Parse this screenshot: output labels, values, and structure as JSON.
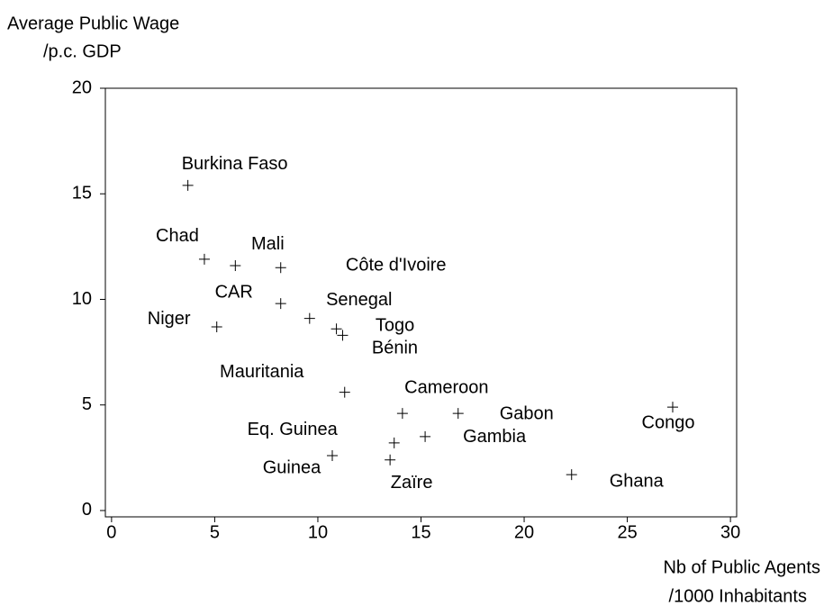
{
  "chart_data": {
    "type": "scatter",
    "y_label": [
      "Average Public Wage",
      "/p.c. GDP"
    ],
    "x_label": [
      "Nb of Public Agents",
      "/1000 Inhabitants"
    ],
    "labels": [
      "Burkina Faso",
      "Chad",
      "Mali",
      "Côte d'Ivoire",
      "CAR",
      "Niger",
      "Senegal",
      "Togo",
      "Bénin",
      "Mauritania",
      "Cameroon",
      "Gabon",
      "Gambia",
      "Eq. Guinea",
      "Guinea",
      "Zaïre",
      "Ghana",
      "Congo"
    ],
    "x": [
      3.7,
      4.5,
      6.0,
      8.2,
      8.2,
      5.1,
      9.6,
      10.9,
      11.2,
      11.3,
      14.1,
      16.8,
      15.2,
      13.7,
      10.7,
      13.5,
      22.3,
      27.2
    ],
    "y": [
      15.4,
      11.9,
      11.6,
      11.5,
      9.8,
      8.7,
      9.1,
      8.6,
      8.3,
      5.6,
      4.6,
      4.6,
      3.5,
      3.2,
      2.6,
      2.4,
      1.7,
      4.9
    ],
    "color": "#000000",
    "xlim": [
      -0.3,
      30.3
    ],
    "ylim": [
      -0.3,
      20
    ],
    "xticks": [
      0,
      5,
      10,
      15,
      20,
      25,
      30
    ],
    "yticks": [
      0,
      5,
      10,
      15,
      20
    ]
  }
}
